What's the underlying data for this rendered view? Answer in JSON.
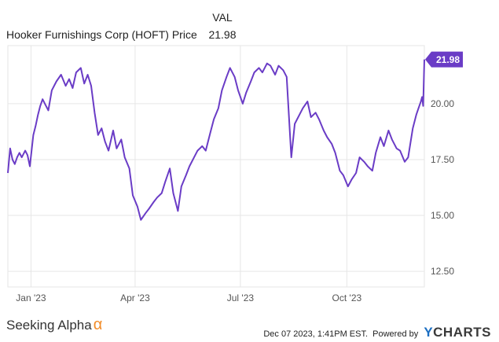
{
  "legend": {
    "header": "VAL",
    "series_name": "Hooker Furnishings Corp (HOFT) Price",
    "series_value": "21.98"
  },
  "footer": {
    "brand_left": "Seeking Alpha",
    "brand_left_symbol": "α",
    "timestamp": "Dec 07 2023, 1:41PM EST.",
    "powered_by": "Powered by",
    "brand_right_y": "Y",
    "brand_right_rest": "CHARTS"
  },
  "colors": {
    "line": "#6a3cc6",
    "grid": "#e6e6e6",
    "label_bg": "#6a3cc6"
  },
  "chart_data": {
    "type": "line",
    "title": "",
    "xlabel": "",
    "ylabel": "",
    "x_range": [
      "2022-12-12",
      "2023-12-07"
    ],
    "ylim": [
      11.8,
      22.6
    ],
    "grid": true,
    "y_ticks": [
      12.5,
      15.0,
      17.5,
      20.0
    ],
    "y_tick_labels": [
      "12.50",
      "15.00",
      "17.50",
      "20.00"
    ],
    "x_ticks": [
      "2023-01-01",
      "2023-04-01",
      "2023-07-01",
      "2023-10-01"
    ],
    "x_tick_labels": [
      "Jan '23",
      "Apr '23",
      "Jul '23",
      "Oct '23"
    ],
    "last_value_label": "21.98",
    "series": [
      {
        "name": "Hooker Furnishings Corp (HOFT) Price",
        "x": [
          "2022-12-12",
          "2022-12-14",
          "2022-12-16",
          "2022-12-18",
          "2022-12-20",
          "2022-12-22",
          "2022-12-24",
          "2022-12-27",
          "2022-12-29",
          "2022-12-31",
          "2023-01-03",
          "2023-01-05",
          "2023-01-07",
          "2023-01-09",
          "2023-01-11",
          "2023-01-13",
          "2023-01-16",
          "2023-01-19",
          "2023-01-23",
          "2023-01-27",
          "2023-01-31",
          "2023-02-03",
          "2023-02-06",
          "2023-02-09",
          "2023-02-13",
          "2023-02-16",
          "2023-02-19",
          "2023-02-22",
          "2023-02-25",
          "2023-02-28",
          "2023-03-03",
          "2023-03-06",
          "2023-03-09",
          "2023-03-13",
          "2023-03-16",
          "2023-03-20",
          "2023-03-23",
          "2023-03-27",
          "2023-03-30",
          "2023-04-03",
          "2023-04-06",
          "2023-04-10",
          "2023-04-13",
          "2023-04-17",
          "2023-04-20",
          "2023-04-24",
          "2023-04-27",
          "2023-05-01",
          "2023-05-04",
          "2023-05-08",
          "2023-05-11",
          "2023-05-15",
          "2023-05-18",
          "2023-05-22",
          "2023-05-25",
          "2023-05-29",
          "2023-06-01",
          "2023-06-05",
          "2023-06-08",
          "2023-06-12",
          "2023-06-15",
          "2023-06-19",
          "2023-06-22",
          "2023-06-26",
          "2023-06-29",
          "2023-07-03",
          "2023-07-06",
          "2023-07-10",
          "2023-07-13",
          "2023-07-17",
          "2023-07-20",
          "2023-07-24",
          "2023-07-27",
          "2023-07-31",
          "2023-08-03",
          "2023-08-07",
          "2023-08-10",
          "2023-08-14",
          "2023-08-17",
          "2023-08-21",
          "2023-08-24",
          "2023-08-28",
          "2023-08-31",
          "2023-09-04",
          "2023-09-07",
          "2023-09-11",
          "2023-09-14",
          "2023-09-18",
          "2023-09-21",
          "2023-09-25",
          "2023-09-28",
          "2023-10-02",
          "2023-10-05",
          "2023-10-09",
          "2023-10-12",
          "2023-10-16",
          "2023-10-19",
          "2023-10-23",
          "2023-10-26",
          "2023-10-30",
          "2023-11-02",
          "2023-11-06",
          "2023-11-09",
          "2023-11-13",
          "2023-11-16",
          "2023-11-20",
          "2023-11-23",
          "2023-11-27",
          "2023-11-30",
          "2023-12-02",
          "2023-12-04",
          "2023-12-05",
          "2023-12-06",
          "2023-12-07"
        ],
        "y": [
          16.9,
          18.0,
          17.5,
          17.3,
          17.6,
          17.8,
          17.6,
          17.9,
          17.7,
          17.2,
          18.6,
          19.0,
          19.5,
          19.9,
          20.2,
          20.0,
          19.7,
          20.6,
          21.0,
          21.3,
          20.8,
          21.1,
          20.7,
          21.4,
          21.6,
          20.9,
          21.3,
          20.8,
          19.6,
          18.6,
          18.9,
          18.3,
          17.9,
          18.8,
          18.0,
          18.4,
          17.6,
          17.1,
          15.9,
          15.4,
          14.8,
          15.1,
          15.3,
          15.6,
          15.8,
          16.0,
          16.5,
          17.1,
          16.0,
          15.2,
          16.3,
          16.8,
          17.2,
          17.6,
          17.9,
          18.1,
          17.9,
          18.7,
          19.3,
          19.8,
          20.6,
          21.2,
          21.6,
          21.2,
          20.6,
          20.0,
          20.5,
          21.0,
          21.4,
          21.6,
          21.4,
          21.8,
          21.7,
          21.3,
          21.7,
          21.5,
          21.2,
          17.6,
          19.1,
          19.5,
          19.8,
          20.1,
          19.4,
          19.6,
          19.3,
          18.8,
          18.5,
          18.2,
          17.8,
          17.0,
          16.8,
          16.3,
          16.6,
          16.9,
          17.6,
          17.4,
          17.2,
          17.0,
          17.8,
          18.5,
          18.1,
          18.8,
          18.4,
          18.0,
          17.9,
          17.4,
          17.6,
          18.9,
          19.5,
          19.8,
          20.1,
          20.3,
          19.9,
          21.98
        ]
      }
    ]
  }
}
